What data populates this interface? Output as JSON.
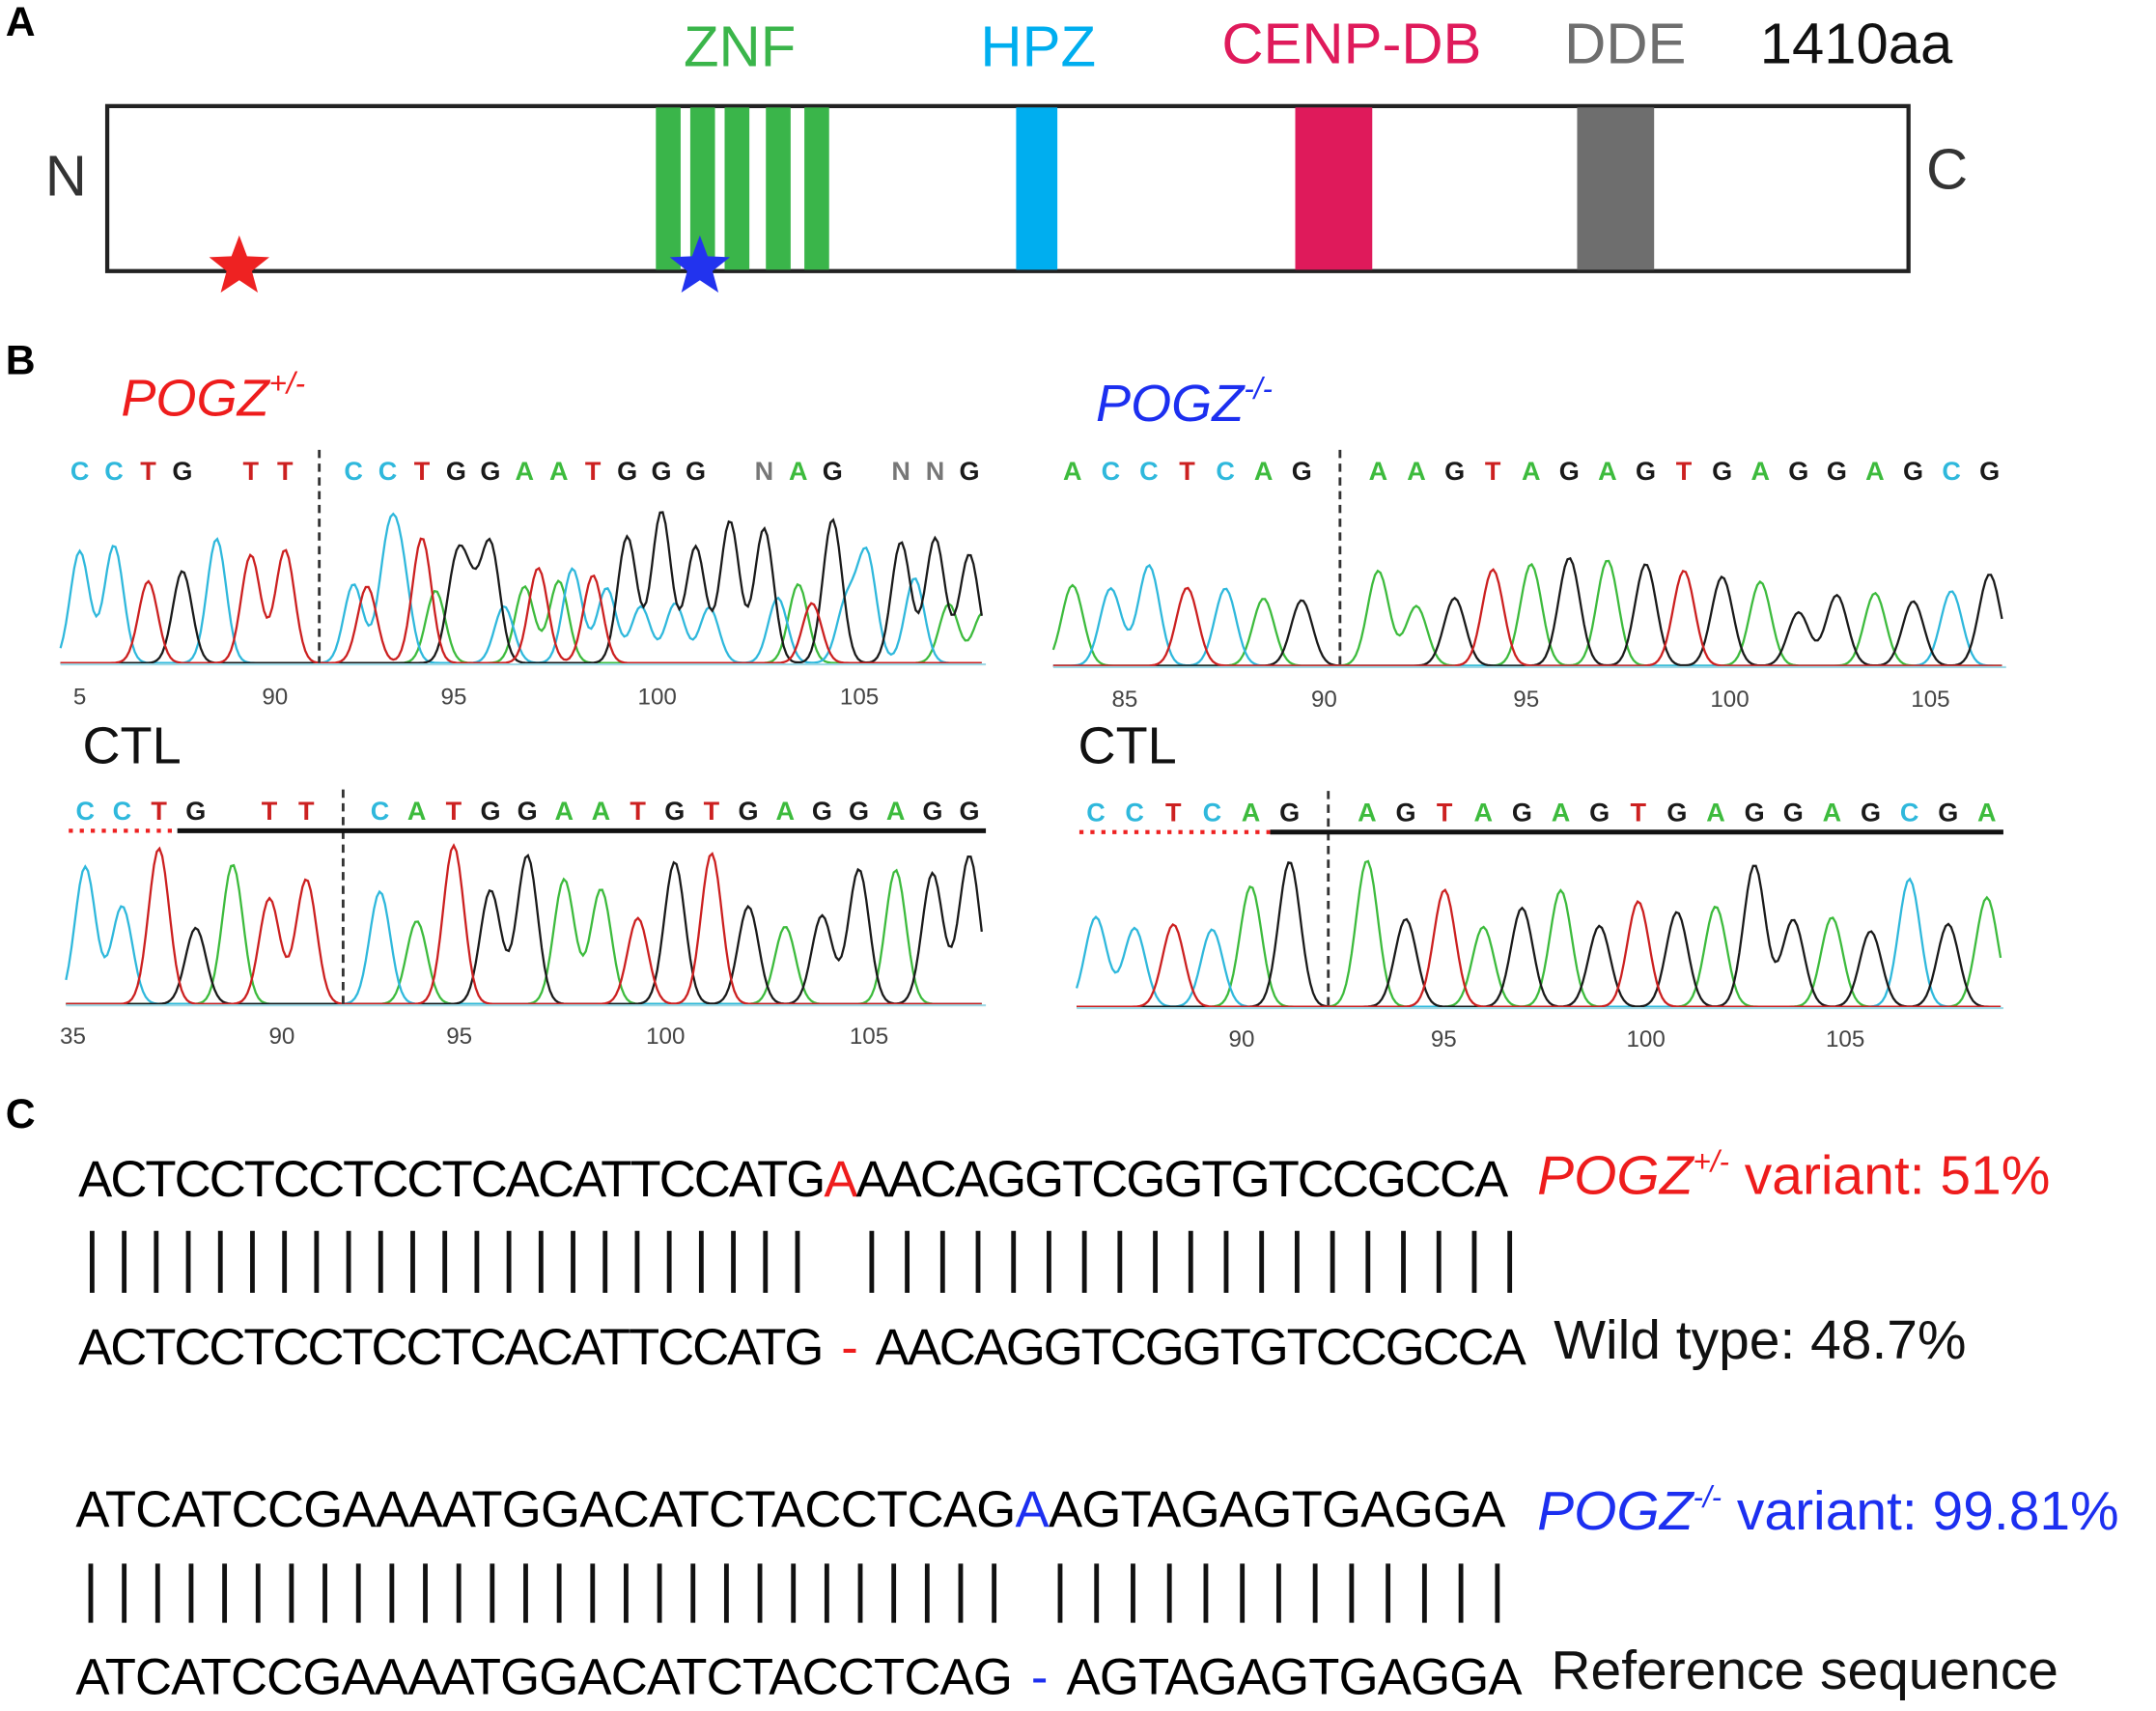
{
  "panel_a": {
    "label": "A",
    "n_term": "N",
    "c_term": "C",
    "length": "1410aa",
    "domains": [
      {
        "name": "ZNF",
        "color": "#3ab54a"
      },
      {
        "name": "HPZ",
        "color": "#00aeef"
      },
      {
        "name": "CENP-DB",
        "color": "#df1a5b"
      },
      {
        "name": "DDE",
        "color": "#6e6e6e"
      }
    ],
    "stars": [
      {
        "color": "#ee2222"
      },
      {
        "color": "#2233ee"
      }
    ]
  },
  "panel_b": {
    "label": "B",
    "het_title": {
      "gene": "POGZ",
      "sup": "+/-",
      "color": "#ee1c1c"
    },
    "hom_title": {
      "gene": "POGZ",
      "sup": "-/-",
      "color": "#1c2ff0"
    },
    "ctl_label_left": "CTL",
    "ctl_label_right": "CTL",
    "chromatograms": [
      {
        "bases": "CCTG TT|CCTGGAATGGG NAG NNG",
        "ticks": [
          "5",
          "90",
          "95",
          "100",
          "105"
        ]
      },
      {
        "bases": "ACCTCAG|AAGTAGAGTGAGGAGCG",
        "ticks": [
          "85",
          "90",
          "95",
          "100",
          "105"
        ]
      },
      {
        "bases": "CCTG TT|CATGGAATGTGAGGAGG",
        "ticks": [
          "35",
          "90",
          "95",
          "100",
          "105"
        ]
      },
      {
        "bases": "CCTCAG|AGTAGAGTGAGGAGCGA",
        "ticks": [
          "90",
          "95",
          "100",
          "105"
        ]
      }
    ],
    "base_colors": {
      "A": "#3dbb3d",
      "C": "#2fb8dc",
      "G": "#1a1a1a",
      "T": "#cc2020",
      "N": "#777777"
    }
  },
  "panel_c": {
    "label": "C",
    "het": {
      "variant_seq": {
        "left": "ACTCCTCCTCCTCACATTCCATG",
        "ins": "A",
        "right": "AACAGGTCGGTGTCCGCCA"
      },
      "ref_seq": {
        "left": "ACTCCTCCTCCTCACATTCCATG",
        "gap": "-",
        "right": "AACAGGTCGGTGTCCGCCA"
      },
      "variant_label": {
        "gene": "POGZ",
        "sup": "+/-",
        "text": " variant: 51%"
      },
      "ref_label": "Wild type: 48.7%",
      "color": "#ee1c1c"
    },
    "hom": {
      "variant_seq": {
        "left": "ATCATCCGAAAATGGACATCTACCTCAG",
        "ins": "A",
        "right": "AGTAGAGTGAGGA"
      },
      "ref_seq": {
        "left": "ATCATCCGAAAATGGACATCTACCTCAG",
        "gap": "-",
        "right": "AGTAGAGTGAGGA"
      },
      "variant_label": {
        "gene": "POGZ",
        "sup": "-/-",
        "text": " variant: 99.81%"
      },
      "ref_label": "Reference sequence",
      "color": "#1c2ff0"
    }
  }
}
